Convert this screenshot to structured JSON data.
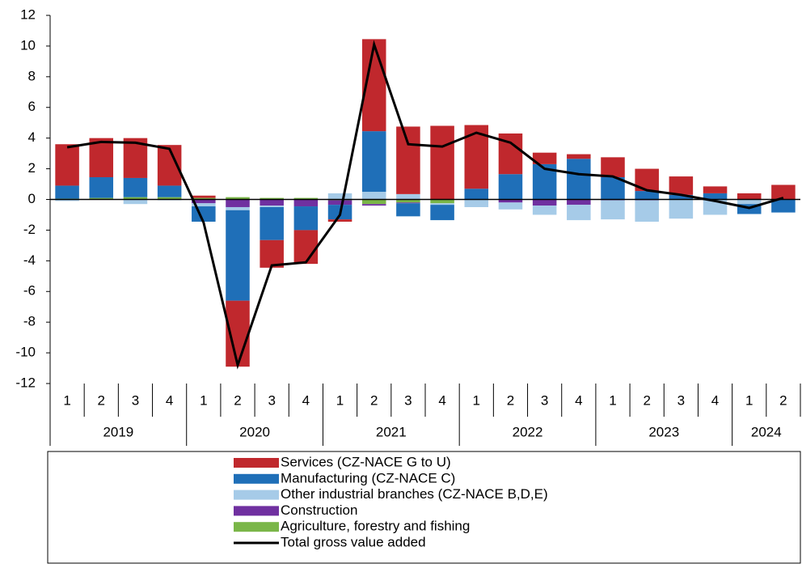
{
  "chart_data": {
    "type": "bar",
    "categories": [
      "1",
      "2",
      "3",
      "4",
      "1",
      "2",
      "3",
      "4",
      "1",
      "2",
      "3",
      "4",
      "1",
      "2",
      "3",
      "4",
      "1",
      "2",
      "3",
      "4",
      "1",
      "2"
    ],
    "years": [
      "2019",
      "2019",
      "2019",
      "2019",
      "2020",
      "2020",
      "2020",
      "2020",
      "2021",
      "2021",
      "2021",
      "2021",
      "2022",
      "2022",
      "2022",
      "2022",
      "2023",
      "2023",
      "2023",
      "2023",
      "2024",
      "2024"
    ],
    "ylim": [
      -12,
      12
    ],
    "yticks": [
      -12,
      -10,
      -8,
      -6,
      -4,
      -2,
      0,
      2,
      4,
      6,
      8,
      10,
      12
    ],
    "series": [
      {
        "name": "Services (CZ-NACE G to U)",
        "color": "#c0282d",
        "type": "bar",
        "values": [
          2.7,
          2.55,
          2.6,
          2.65,
          0.15,
          -4.3,
          -1.8,
          -2.2,
          -0.15,
          6.0,
          4.4,
          4.8,
          4.15,
          2.65,
          0.75,
          0.3,
          1.3,
          1.45,
          1.2,
          0.45,
          0.4,
          0.95
        ]
      },
      {
        "name": "Manufacturing (CZ-NACE C)",
        "color": "#1f6fb8",
        "type": "bar",
        "values": [
          0.85,
          1.35,
          1.25,
          0.75,
          -1.0,
          -5.9,
          -2.15,
          -1.55,
          -0.95,
          3.95,
          -0.85,
          -1.0,
          0.7,
          1.65,
          2.3,
          2.65,
          1.45,
          0.55,
          0.3,
          0.4,
          -0.65,
          -0.85
        ]
      },
      {
        "name": "Other industrial branches (CZ-NACE B,D,E)",
        "color": "#a6cbe8",
        "type": "bar",
        "values": [
          -0.1,
          0,
          -0.3,
          -0.05,
          -0.2,
          -0.2,
          -0.1,
          0,
          0.4,
          0.5,
          0.35,
          -0.1,
          -0.5,
          -0.45,
          -0.6,
          -1.0,
          -1.25,
          -1.4,
          -1.25,
          -1.0,
          -0.3,
          0
        ]
      },
      {
        "name": "Construction",
        "color": "#7030a0",
        "type": "bar",
        "values": [
          0,
          0,
          0,
          0,
          -0.25,
          -0.5,
          -0.4,
          -0.45,
          -0.3,
          -0.1,
          -0.05,
          0,
          0,
          -0.2,
          -0.4,
          -0.35,
          -0.05,
          -0.05,
          0,
          0,
          0,
          0
        ]
      },
      {
        "name": "Agriculture, forestry and fishing",
        "color": "#7ab648",
        "type": "bar",
        "values": [
          0.05,
          0.1,
          0.15,
          0.15,
          0.1,
          0.15,
          0.1,
          0.1,
          -0.05,
          -0.3,
          -0.2,
          -0.25,
          0,
          0,
          0,
          0,
          0,
          0,
          0,
          0,
          0,
          0
        ]
      },
      {
        "name": "Total gross value added",
        "color": "#000000",
        "type": "line",
        "values": [
          3.4,
          3.75,
          3.7,
          3.3,
          -1.5,
          -10.8,
          -4.3,
          -4.1,
          -1.0,
          10.1,
          3.6,
          3.45,
          4.35,
          3.7,
          2.0,
          1.65,
          1.5,
          0.6,
          0.3,
          -0.1,
          -0.55,
          0.1
        ]
      }
    ]
  }
}
